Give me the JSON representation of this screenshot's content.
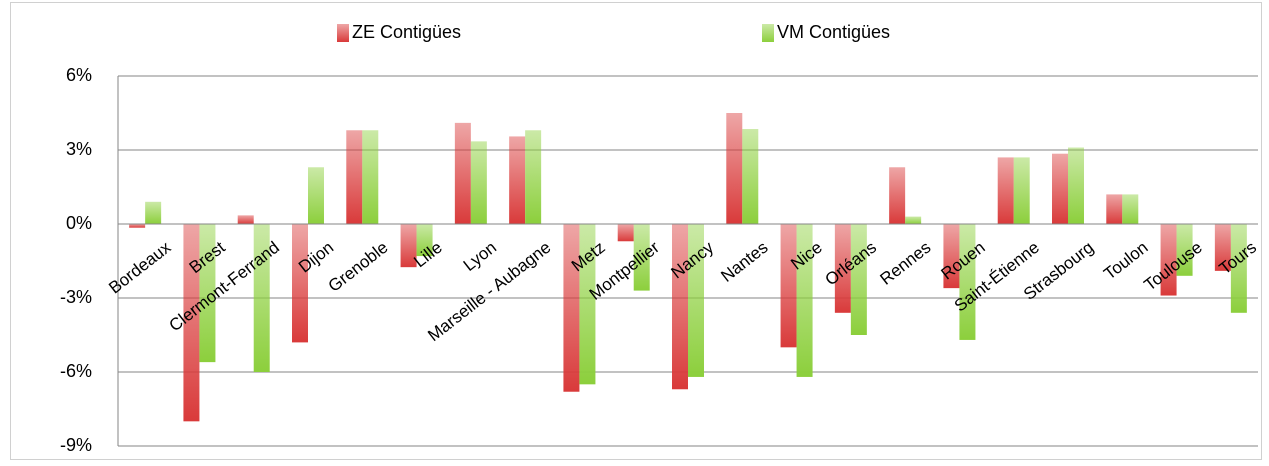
{
  "chart_data": {
    "type": "bar",
    "categories": [
      "Bordeaux",
      "Brest",
      "Clermont-Ferrand",
      "Dijon",
      "Grenoble",
      "Lille",
      "Lyon",
      "Marseille - Aubagne",
      "Metz",
      "Montpellier",
      "Nancy",
      "Nantes",
      "Nice",
      "Orléans",
      "Rennes",
      "Rouen",
      "Saint-Étienne",
      "Strasbourg",
      "Toulon",
      "Toulouse",
      "Tours"
    ],
    "series": [
      {
        "name": "ZE Contigües",
        "color": "#d93a3a",
        "values": [
          -0.15,
          -8.0,
          0.35,
          -4.8,
          3.8,
          -1.75,
          4.1,
          3.55,
          -6.8,
          -0.7,
          -6.7,
          4.5,
          -5.0,
          -3.6,
          2.3,
          -2.6,
          2.7,
          2.85,
          1.2,
          -2.9,
          -1.9
        ]
      },
      {
        "name": "VM Contigües",
        "color": "#8ccf3c",
        "values": [
          0.9,
          -5.6,
          -6.0,
          2.3,
          3.8,
          -1.3,
          3.35,
          3.8,
          -6.5,
          -2.7,
          -6.2,
          3.85,
          -6.2,
          -4.5,
          0.3,
          -4.7,
          2.7,
          3.1,
          1.2,
          -2.1,
          -3.6
        ]
      }
    ],
    "ylim": [
      -9,
      6
    ],
    "yticks": [
      {
        "value": -9,
        "label": "-9%"
      },
      {
        "value": -6,
        "label": "-6%"
      },
      {
        "value": -3,
        "label": "-3%"
      },
      {
        "value": 0,
        "label": "0%"
      },
      {
        "value": 3,
        "label": "3%"
      },
      {
        "value": 6,
        "label": "6%"
      }
    ],
    "grid": true,
    "legend": "top"
  }
}
